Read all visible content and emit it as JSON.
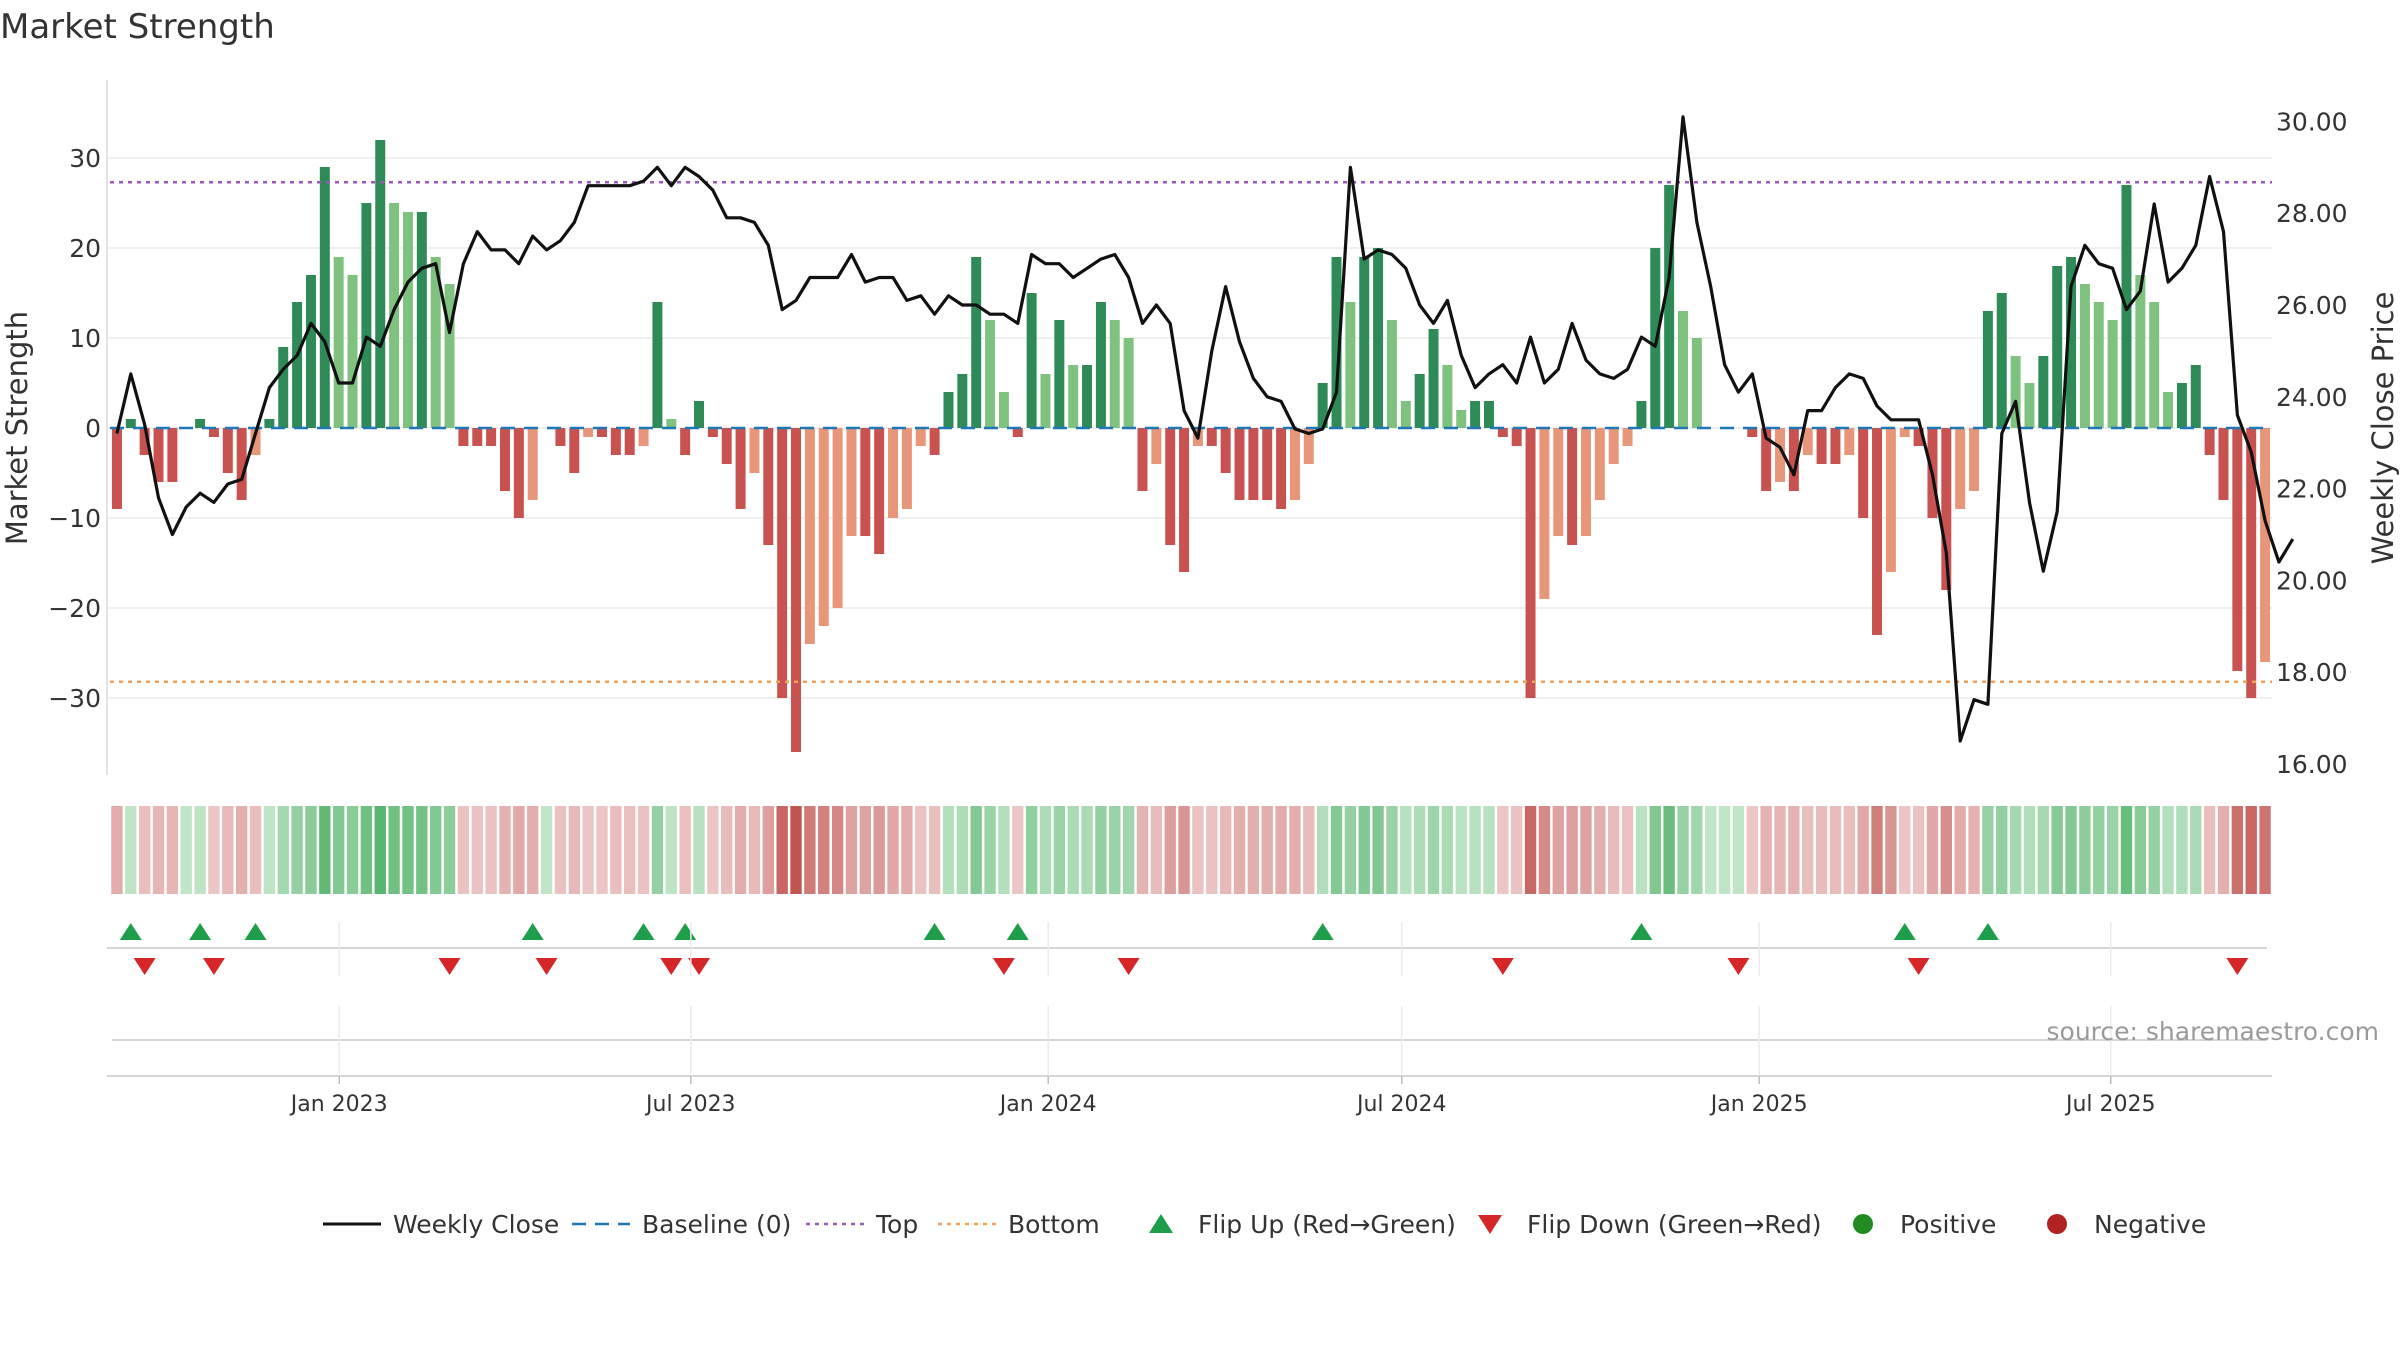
{
  "chart_data": {
    "type": "bar",
    "title": "Market Strength",
    "source_note": "source: sharemaestro.com",
    "left_axis": {
      "label": "Market Strength",
      "ticks": [
        30,
        20,
        10,
        0,
        -10,
        -20,
        -30
      ],
      "tick_labels": [
        "30",
        "20",
        "10",
        "0",
        "−10",
        "−20",
        "−30"
      ],
      "range": [
        -38,
        38
      ]
    },
    "right_axis": {
      "label": "Weekly Close Price",
      "ticks": [
        16,
        18,
        20,
        22,
        24,
        26,
        28,
        30
      ],
      "tick_labels": [
        "16.00",
        "18.00",
        "20.00",
        "22.00",
        "24.00",
        "26.00",
        "28.00",
        "30.00"
      ],
      "range": [
        16,
        30.7
      ]
    },
    "x_axis": {
      "start": "2022-09-05",
      "end": "2025-09-22",
      "tick_dates": [
        "2023-01-01",
        "2023-07-01",
        "2024-01-01",
        "2024-07-01",
        "2025-01-01",
        "2025-07-01"
      ],
      "tick_labels": [
        "Jan 2023",
        "Jul 2023",
        "Jan 2024",
        "Jul 2024",
        "Jan 2025",
        "Jul 2025"
      ]
    },
    "top_level": 27.3,
    "bottom_level": -28.2,
    "colors": {
      "pos_strong": "#2e8b57",
      "pos_weak": "#7fc17f",
      "neg_strong": "#c85250",
      "neg_weak": "#e8967a",
      "close_line": "#111111",
      "baseline": "#1f77b4",
      "top_line": "#9b59b6",
      "bottom_line": "#f0a05a",
      "flip_up": "#1e9e4a",
      "flip_down": "#d62728",
      "positive_dot": "#228b22",
      "negative_dot": "#b22222"
    },
    "strength": [
      -9,
      1,
      -3,
      -6,
      -6,
      0,
      1,
      -1,
      -5,
      -8,
      -3,
      1,
      9,
      14,
      17,
      29,
      19,
      17,
      25,
      32,
      25,
      24,
      24,
      19,
      16,
      -2,
      -2,
      -2,
      -7,
      -10,
      -8,
      0,
      -2,
      -5,
      -1,
      -1,
      -3,
      -3,
      -2,
      14,
      1,
      -3,
      3,
      -1,
      -4,
      -9,
      -5,
      -13,
      -30,
      -36,
      -24,
      -22,
      -20,
      -12,
      -12,
      -14,
      -10,
      -9,
      -2,
      -3,
      4,
      6,
      19,
      12,
      4,
      -1,
      15,
      6,
      12,
      7,
      7,
      14,
      12,
      10,
      -7,
      -4,
      -13,
      -16,
      -2,
      -2,
      -5,
      -8,
      -8,
      -8,
      -9,
      -8,
      -4,
      5,
      19,
      14,
      19,
      20,
      12,
      3,
      6,
      11,
      7,
      2,
      3,
      3,
      -1,
      -2,
      -30,
      -19,
      -12,
      -13,
      -12,
      -8,
      -4,
      -2,
      3,
      20,
      27,
      13,
      10,
      0,
      0,
      0,
      -1,
      -7,
      -6,
      -7,
      -3,
      -4,
      -4,
      -3,
      -10,
      -23,
      -16,
      -1,
      -2,
      -10,
      -18,
      -9,
      -7,
      13,
      15,
      8,
      5,
      8,
      18,
      19,
      16,
      14,
      12,
      27,
      17,
      14,
      4,
      5,
      7,
      -3,
      -8,
      -27,
      -30,
      -26
    ],
    "close": [
      23.2,
      24.5,
      23.4,
      21.8,
      21.0,
      21.6,
      21.9,
      21.7,
      22.1,
      22.2,
      23.2,
      24.2,
      24.6,
      24.9,
      25.6,
      25.2,
      24.3,
      24.3,
      25.3,
      25.1,
      25.9,
      26.5,
      26.8,
      26.9,
      25.4,
      26.9,
      27.6,
      27.2,
      27.2,
      26.9,
      27.5,
      27.2,
      27.4,
      27.8,
      28.6,
      28.6,
      28.6,
      28.6,
      28.7,
      29.0,
      28.6,
      29.0,
      28.8,
      28.5,
      27.9,
      27.9,
      27.8,
      27.3,
      25.9,
      26.1,
      26.6,
      26.6,
      26.6,
      27.1,
      26.5,
      26.6,
      26.6,
      26.1,
      26.2,
      25.8,
      26.2,
      26.0,
      26.0,
      25.8,
      25.8,
      25.6,
      27.1,
      26.9,
      26.9,
      26.6,
      26.8,
      27.0,
      27.1,
      26.6,
      25.6,
      26.0,
      25.6,
      23.7,
      23.1,
      25.0,
      26.4,
      25.2,
      24.4,
      24.0,
      23.9,
      23.3,
      23.2,
      23.3,
      24.1,
      29.0,
      27.0,
      27.2,
      27.1,
      26.8,
      26.0,
      25.6,
      26.1,
      24.9,
      24.2,
      24.5,
      24.7,
      24.3,
      25.3,
      24.3,
      24.6,
      25.6,
      24.8,
      24.5,
      24.4,
      24.6,
      25.3,
      25.1,
      26.6,
      30.1,
      27.8,
      26.4,
      24.7,
      24.1,
      24.5,
      23.1,
      22.9,
      22.3,
      23.7,
      23.7,
      24.2,
      24.5,
      24.4,
      23.8,
      23.5,
      23.5,
      23.5,
      22.3,
      20.6,
      16.5,
      17.4,
      17.3,
      23.2,
      23.9,
      21.7,
      20.2,
      21.5,
      26.4,
      27.3,
      26.9,
      26.8,
      25.9,
      26.3,
      28.2,
      26.5,
      26.8,
      27.3,
      28.8,
      27.6,
      23.6,
      22.8,
      21.3,
      20.4,
      20.9
    ],
    "flip_up_weeks": [
      1,
      6,
      10,
      30,
      38,
      41,
      59,
      65,
      87,
      110,
      129,
      135
    ],
    "flip_down_weeks": [
      2,
      7,
      24,
      31,
      40,
      42,
      64,
      73,
      100,
      117,
      130,
      153
    ],
    "legend": [
      {
        "label": "Weekly Close",
        "kind": "line"
      },
      {
        "label": "Baseline (0)",
        "kind": "dash"
      },
      {
        "label": "Top",
        "kind": "dot-purple"
      },
      {
        "label": "Bottom",
        "kind": "dot-orange"
      },
      {
        "label": "Flip Up (Red→Green)",
        "kind": "tri-up"
      },
      {
        "label": "Flip Down (Green→Red)",
        "kind": "tri-down"
      },
      {
        "label": "Positive",
        "kind": "circle-pos"
      },
      {
        "label": "Negative",
        "kind": "circle-neg"
      }
    ]
  }
}
